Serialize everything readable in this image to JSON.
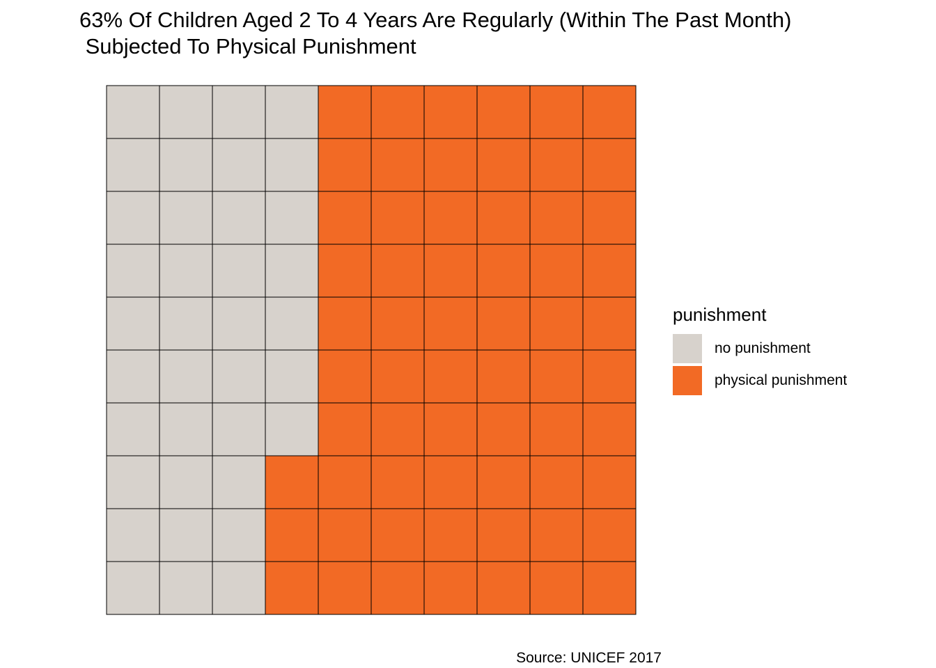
{
  "chart_data": {
    "type": "waffle",
    "title": "63% Of Children Aged 2 To 4 Years Are Regularly (Within The Past Month)\n Subjected To Physical Punishment",
    "caption": "Source: UNICEF 2017",
    "grid": {
      "rows": 10,
      "columns": 10
    },
    "fill_order": "column-wise from left, top to bottom",
    "series": [
      {
        "name": "no punishment",
        "value": 37,
        "color": "#D7D2CC"
      },
      {
        "name": "physical punishment",
        "value": 63,
        "color": "#F26A25"
      }
    ],
    "legend": {
      "title": "punishment",
      "position": "right"
    },
    "tile_border_color": "#000000",
    "axes": "none",
    "grid_lines": false
  }
}
